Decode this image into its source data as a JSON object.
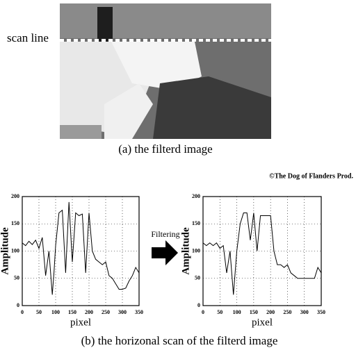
{
  "figure": {
    "scan_label": "scan line",
    "caption_a": "(a) the filterd image",
    "credit": "©The Dog of Flanders Prod.",
    "arrow_label": "Filtering",
    "caption_b": "(b) the horizonal scan of the filterd image"
  },
  "chart_data": [
    {
      "type": "line",
      "xlabel": "pixel",
      "ylabel": "Amplitude",
      "color": "#000000",
      "grid": true,
      "x": [
        0,
        10,
        20,
        30,
        40,
        50,
        60,
        70,
        80,
        90,
        95,
        100,
        110,
        120,
        130,
        140,
        150,
        160,
        170,
        180,
        190,
        200,
        210,
        220,
        230,
        240,
        250,
        260,
        270,
        280,
        290,
        300,
        310,
        320,
        330,
        340,
        350
      ],
      "values": [
        115,
        110,
        118,
        112,
        120,
        105,
        125,
        55,
        100,
        20,
        60,
        110,
        170,
        175,
        60,
        190,
        80,
        170,
        165,
        168,
        60,
        170,
        100,
        85,
        80,
        75,
        80,
        55,
        50,
        40,
        30,
        30,
        32,
        45,
        55,
        70,
        60
      ],
      "xlim": [
        0,
        350
      ],
      "ylim": [
        0,
        200
      ],
      "xticks": [
        0,
        50,
        100,
        150,
        200,
        250,
        300,
        350
      ],
      "yticks": [
        0,
        50,
        100,
        150,
        200
      ]
    },
    {
      "type": "line",
      "xlabel": "pixel",
      "ylabel": "Amplitude",
      "color": "#000000",
      "grid": true,
      "x": [
        0,
        10,
        20,
        30,
        40,
        50,
        60,
        70,
        80,
        90,
        95,
        100,
        110,
        120,
        130,
        140,
        150,
        160,
        170,
        180,
        190,
        200,
        210,
        220,
        230,
        240,
        250,
        260,
        270,
        280,
        290,
        300,
        310,
        320,
        330,
        340,
        350
      ],
      "values": [
        115,
        110,
        115,
        110,
        115,
        105,
        110,
        60,
        100,
        20,
        60,
        100,
        150,
        170,
        170,
        120,
        170,
        100,
        165,
        165,
        165,
        165,
        100,
        75,
        75,
        70,
        75,
        60,
        55,
        50,
        50,
        50,
        50,
        50,
        50,
        70,
        60
      ],
      "xlim": [
        0,
        350
      ],
      "ylim": [
        0,
        200
      ],
      "xticks": [
        0,
        50,
        100,
        150,
        200,
        250,
        300,
        350
      ],
      "yticks": [
        0,
        50,
        100,
        150,
        200
      ]
    }
  ]
}
